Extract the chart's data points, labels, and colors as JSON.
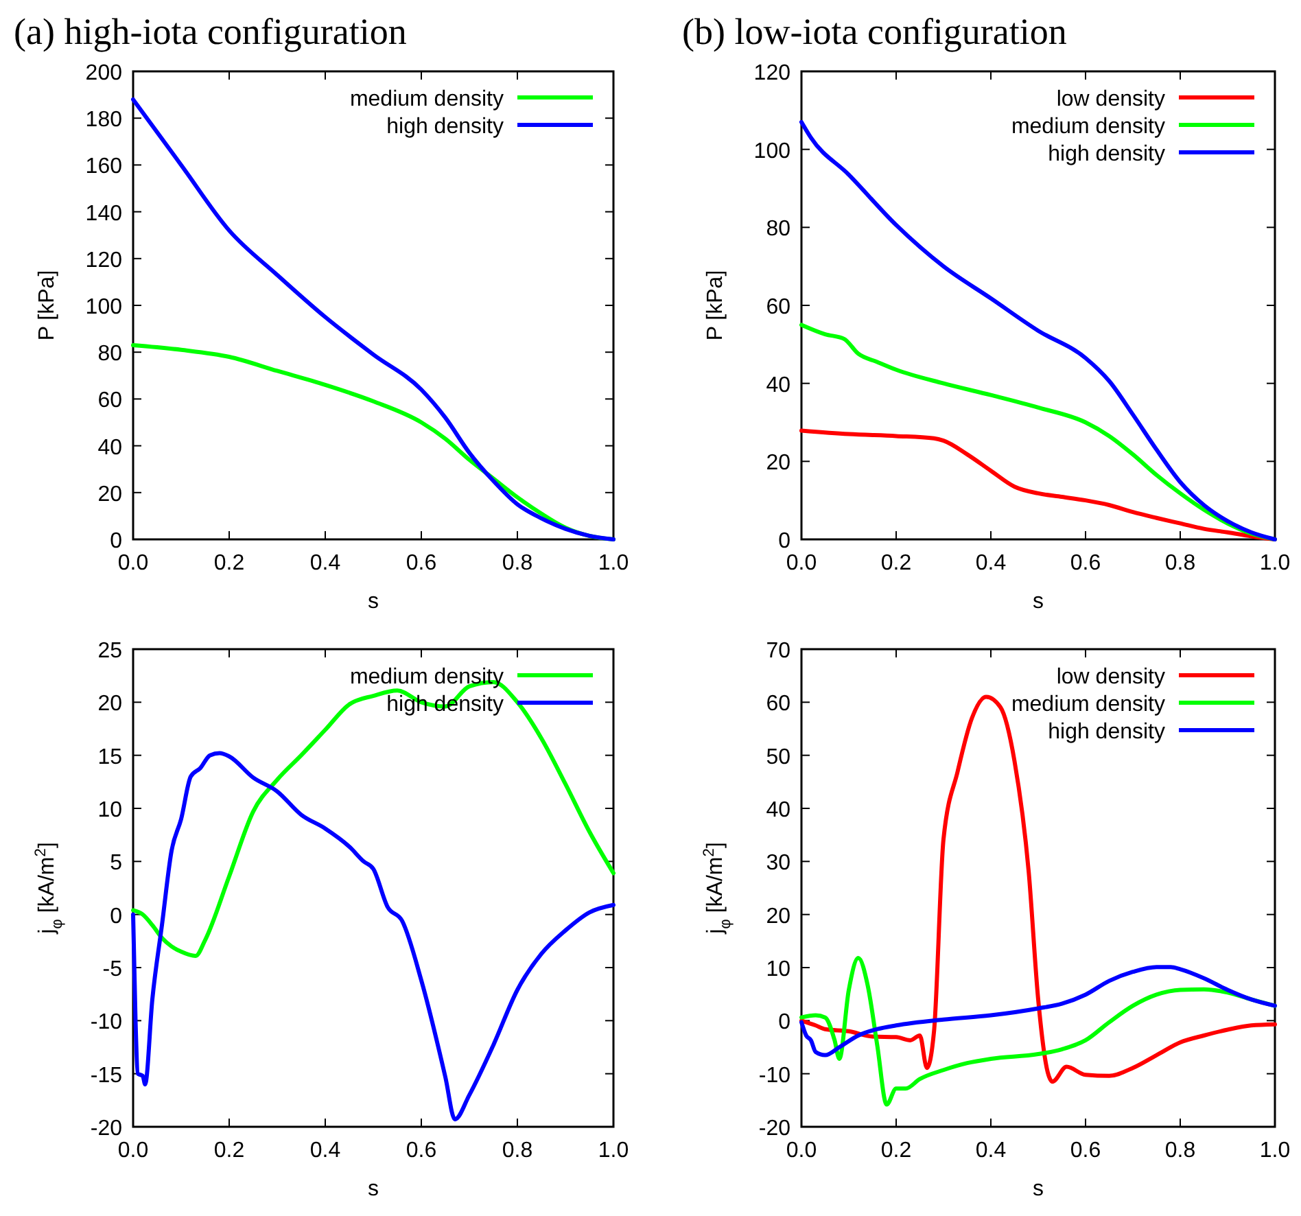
{
  "chart_data": [
    {
      "type": "line",
      "title": "(a) high-iota configuration",
      "xlabel": "s",
      "ylabel": "P [kPa]",
      "xlim": [
        0,
        1
      ],
      "xticks": [
        {
          "value": 0,
          "label": "0.0"
        },
        {
          "value": 0.2,
          "label": "0.2"
        },
        {
          "value": 0.4,
          "label": "0.4"
        },
        {
          "value": 0.6,
          "label": "0.6"
        },
        {
          "value": 0.8,
          "label": "0.8"
        },
        {
          "value": 1,
          "label": "1.0"
        }
      ],
      "ylim": [
        0,
        200
      ],
      "yticks": [
        0,
        20,
        40,
        60,
        80,
        100,
        120,
        140,
        160,
        180,
        200
      ],
      "legend": "top right",
      "series": [
        {
          "name": "medium density",
          "color": "#00ff00",
          "x": [
            0,
            0.1,
            0.2,
            0.3,
            0.4,
            0.5,
            0.6,
            0.65,
            0.7,
            0.75,
            0.8,
            0.85,
            0.9,
            0.95,
            1
          ],
          "values": [
            83,
            81,
            78,
            72,
            66,
            59,
            50,
            43,
            34,
            26,
            18,
            11,
            5,
            1.5,
            0
          ]
        },
        {
          "name": "high density",
          "color": "#0000ff",
          "x": [
            0,
            0.1,
            0.2,
            0.3,
            0.4,
            0.5,
            0.6,
            0.65,
            0.7,
            0.75,
            0.8,
            0.85,
            0.9,
            0.95,
            1
          ],
          "values": [
            188,
            160,
            132,
            113,
            95,
            79,
            64,
            52,
            37,
            25,
            15,
            9,
            4.5,
            1.5,
            0
          ]
        }
      ]
    },
    {
      "type": "line",
      "title": "(b) low-iota configuration",
      "xlabel": "s",
      "ylabel": "P [kPa]",
      "xlim": [
        0,
        1
      ],
      "xticks": [
        {
          "value": 0,
          "label": "0.0"
        },
        {
          "value": 0.2,
          "label": "0.2"
        },
        {
          "value": 0.4,
          "label": "0.4"
        },
        {
          "value": 0.6,
          "label": "0.6"
        },
        {
          "value": 0.8,
          "label": "0.8"
        },
        {
          "value": 1,
          "label": "1.0"
        }
      ],
      "ylim": [
        0,
        120
      ],
      "yticks": [
        0,
        20,
        40,
        60,
        80,
        100,
        120
      ],
      "legend": "top right",
      "series": [
        {
          "name": "low density",
          "color": "#ff0000",
          "x": [
            0,
            0.1,
            0.2,
            0.28,
            0.3,
            0.35,
            0.4,
            0.45,
            0.5,
            0.55,
            0.6,
            0.65,
            0.7,
            0.75,
            0.8,
            0.85,
            0.9,
            0.95,
            1
          ],
          "values": [
            27.9,
            27,
            26.5,
            25.9,
            25.3,
            21.8,
            17.6,
            13.5,
            11.8,
            10.9,
            10,
            8.8,
            7,
            5.5,
            4.1,
            2.7,
            1.8,
            0.8,
            0
          ]
        },
        {
          "name": "medium density",
          "color": "#00ff00",
          "x": [
            0,
            0.05,
            0.09,
            0.12,
            0.16,
            0.2,
            0.3,
            0.4,
            0.5,
            0.6,
            0.65,
            0.7,
            0.75,
            0.8,
            0.85,
            0.9,
            0.95,
            1
          ],
          "values": [
            55,
            52.6,
            51.4,
            47.6,
            45.5,
            43.5,
            40,
            37,
            33.8,
            30,
            26.5,
            21.8,
            16.5,
            11.8,
            7.6,
            4.1,
            1.5,
            0
          ]
        },
        {
          "name": "high density",
          "color": "#0000ff",
          "x": [
            0,
            0.02,
            0.1,
            0.2,
            0.3,
            0.4,
            0.5,
            0.6,
            0.65,
            0.7,
            0.75,
            0.8,
            0.85,
            0.9,
            0.95,
            1
          ],
          "values": [
            107,
            103,
            93.5,
            80.6,
            70,
            61.8,
            53.5,
            46.5,
            40.6,
            32,
            23,
            14.7,
            8.8,
            4.7,
            1.8,
            0
          ]
        }
      ]
    },
    {
      "type": "line",
      "xlabel": "s",
      "ylabel": "j$_{φ}$ [kA/m$^{2}$]",
      "xlim": [
        0,
        1
      ],
      "xticks": [
        {
          "value": 0,
          "label": "0.0"
        },
        {
          "value": 0.2,
          "label": "0.2"
        },
        {
          "value": 0.4,
          "label": "0.4"
        },
        {
          "value": 0.6,
          "label": "0.6"
        },
        {
          "value": 0.8,
          "label": "0.8"
        },
        {
          "value": 1,
          "label": "1.0"
        }
      ],
      "ylim": [
        -20,
        25
      ],
      "yticks": [
        -20,
        -15,
        -10,
        -5,
        0,
        5,
        10,
        15,
        20,
        25
      ],
      "legend": "top right",
      "series": [
        {
          "name": "medium density",
          "color": "#00ff00",
          "x": [
            0,
            0.02,
            0.04,
            0.06,
            0.08,
            0.1,
            0.13,
            0.15,
            0.2,
            0.25,
            0.3,
            0.35,
            0.4,
            0.45,
            0.5,
            0.55,
            0.6,
            0.65,
            0.7,
            0.75,
            0.8,
            0.85,
            0.9,
            0.95,
            1
          ],
          "values": [
            0.4,
            0,
            -1,
            -2.2,
            -3,
            -3.5,
            -3.9,
            -2.4,
            3.6,
            9.7,
            12.7,
            15,
            17.4,
            19.8,
            20.6,
            21.1,
            20,
            19.6,
            21.5,
            21.9,
            20,
            16.6,
            12.3,
            7.8,
            3.9
          ]
        },
        {
          "name": "high density",
          "color": "#0000ff",
          "x": [
            0,
            0.005,
            0.01,
            0.02,
            0.025,
            0.04,
            0.06,
            0.08,
            0.1,
            0.12,
            0.14,
            0.16,
            0.18,
            0.2,
            0.25,
            0.3,
            0.35,
            0.4,
            0.45,
            0.48,
            0.5,
            0.53,
            0.56,
            0.6,
            0.65,
            0.67,
            0.7,
            0.75,
            0.8,
            0.85,
            0.9,
            0.95,
            1
          ],
          "values": [
            0,
            -10,
            -15,
            -15.2,
            -16,
            -8,
            -1,
            6,
            9,
            13,
            13.8,
            15,
            15.2,
            14.9,
            12.9,
            11.6,
            9.4,
            8.1,
            6.4,
            5,
            4.3,
            0.7,
            -0.6,
            -6.2,
            -15.3,
            -19.3,
            -17,
            -12.3,
            -7.1,
            -3.7,
            -1.5,
            0.2,
            0.9
          ]
        }
      ]
    },
    {
      "type": "line",
      "xlabel": "s",
      "ylabel": "j$_{φ}$ [kA/m$^{2}$]",
      "xlim": [
        0,
        1
      ],
      "xticks": [
        {
          "value": 0,
          "label": "0.0"
        },
        {
          "value": 0.2,
          "label": "0.2"
        },
        {
          "value": 0.4,
          "label": "0.4"
        },
        {
          "value": 0.6,
          "label": "0.6"
        },
        {
          "value": 0.8,
          "label": "0.8"
        },
        {
          "value": 1,
          "label": "1.0"
        }
      ],
      "ylim": [
        -20,
        70
      ],
      "yticks": [
        -20,
        -10,
        0,
        10,
        20,
        30,
        40,
        50,
        60,
        70
      ],
      "legend": "top right",
      "series": [
        {
          "name": "low density",
          "color": "#ff0000",
          "x": [
            0,
            0.03,
            0.05,
            0.1,
            0.15,
            0.2,
            0.23,
            0.25,
            0.265,
            0.28,
            0.3,
            0.33,
            0.36,
            0.39,
            0.42,
            0.45,
            0.48,
            0.5,
            0.52,
            0.53,
            0.56,
            0.6,
            0.65,
            0.7,
            0.75,
            0.8,
            0.85,
            0.9,
            0.95,
            1
          ],
          "values": [
            0,
            -0.9,
            -1.6,
            -2,
            -3,
            -3.1,
            -3.7,
            -2.8,
            -8.9,
            -2,
            34.2,
            47,
            57,
            61,
            59.1,
            48.9,
            28,
            4,
            -9.7,
            -11.5,
            -8.7,
            -10.2,
            -10.4,
            -8.9,
            -6.5,
            -4.1,
            -2.8,
            -1.7,
            -0.9,
            -0.7
          ]
        },
        {
          "name": "medium density",
          "color": "#00ff00",
          "x": [
            0,
            0.03,
            0.05,
            0.07,
            0.08,
            0.1,
            0.12,
            0.14,
            0.16,
            0.18,
            0.2,
            0.22,
            0.25,
            0.3,
            0.35,
            0.4,
            0.5,
            0.55,
            0.6,
            0.65,
            0.7,
            0.75,
            0.8,
            0.85,
            0.9,
            0.95,
            1
          ],
          "values": [
            0.6,
            1,
            0.6,
            -3.7,
            -7.2,
            5.8,
            11.8,
            6.6,
            -4.6,
            -15.8,
            -12.8,
            -12.8,
            -11,
            -9.3,
            -8,
            -7.2,
            -6.3,
            -5.4,
            -3.7,
            -0.3,
            2.8,
            4.9,
            5.8,
            5.9,
            5.3,
            4,
            2.8
          ]
        },
        {
          "name": "high density",
          "color": "#0000ff",
          "x": [
            0,
            0.01,
            0.02,
            0.03,
            0.05,
            0.08,
            0.12,
            0.16,
            0.2,
            0.3,
            0.4,
            0.5,
            0.55,
            0.6,
            0.65,
            0.7,
            0.75,
            0.78,
            0.8,
            0.85,
            0.9,
            0.95,
            1
          ],
          "values": [
            -0.3,
            -2.8,
            -3.7,
            -5.9,
            -6.5,
            -5,
            -2.8,
            -1.6,
            -0.9,
            0.2,
            1,
            2.3,
            3.2,
            4.9,
            7.5,
            9.2,
            10.1,
            10.1,
            9.7,
            8,
            5.8,
            4,
            2.8
          ]
        }
      ]
    }
  ]
}
